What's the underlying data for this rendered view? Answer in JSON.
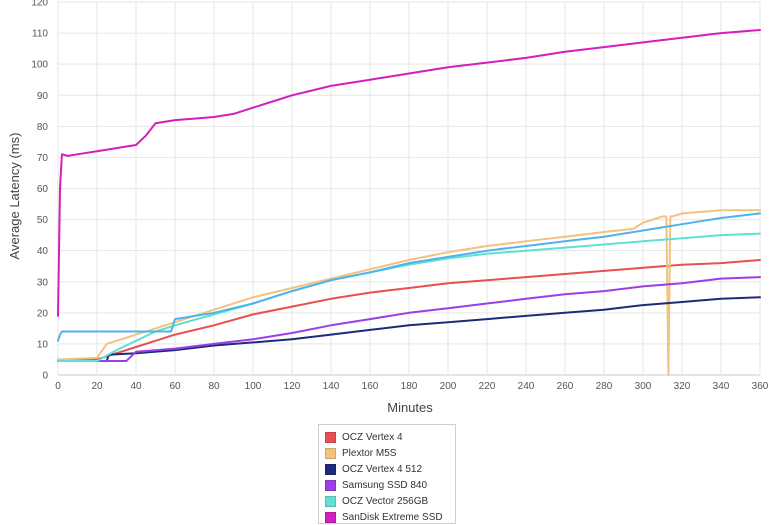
{
  "chart_data": {
    "type": "line",
    "title": "",
    "xlabel": "Minutes",
    "ylabel": "Average Latency (ms)",
    "xlim": [
      0,
      360
    ],
    "ylim": [
      0,
      120
    ],
    "x_ticks": [
      0,
      20,
      40,
      60,
      80,
      100,
      120,
      140,
      160,
      180,
      200,
      220,
      240,
      260,
      280,
      300,
      320,
      340,
      360
    ],
    "y_ticks": [
      0,
      10,
      20,
      30,
      40,
      50,
      60,
      70,
      80,
      90,
      100,
      110,
      120
    ],
    "grid": "vertical and horizontal",
    "legend_position": "bottom",
    "series": [
      {
        "name": "OCZ Vertex 4",
        "color": "#e8504f",
        "x": [
          0,
          20,
          30,
          40,
          50,
          60,
          80,
          100,
          120,
          140,
          160,
          180,
          200,
          220,
          240,
          260,
          280,
          300,
          320,
          340,
          360
        ],
        "values": [
          5,
          5,
          7,
          9,
          11,
          13,
          16,
          19.5,
          22,
          24.5,
          26.5,
          28,
          29.5,
          30.5,
          31.5,
          32.5,
          33.5,
          34.5,
          35.5,
          36,
          37
        ]
      },
      {
        "name": "Plextor M5S",
        "color": "#f2c27e",
        "x": [
          0,
          20,
          25,
          30,
          40,
          50,
          60,
          80,
          100,
          120,
          140,
          160,
          180,
          200,
          220,
          240,
          260,
          280,
          295,
          300,
          310,
          312,
          313,
          314,
          315,
          320,
          340,
          360
        ],
        "values": [
          5,
          5.5,
          10,
          11,
          13,
          15,
          17,
          21,
          25,
          28,
          31,
          34,
          37,
          39.5,
          41.5,
          43,
          44.5,
          46,
          47,
          49,
          51,
          51,
          0,
          51,
          51,
          52,
          53,
          53
        ]
      },
      {
        "name": "OCZ Vertex 4 512",
        "color": "#1f2a7a",
        "x": [
          0,
          20,
          25,
          26,
          40,
          60,
          80,
          100,
          120,
          140,
          160,
          180,
          200,
          220,
          240,
          260,
          280,
          300,
          320,
          340,
          360
        ],
        "values": [
          4.5,
          4.5,
          4.5,
          6.5,
          7,
          8,
          9.5,
          10.5,
          11.5,
          13,
          14.5,
          16,
          17,
          18,
          19,
          20,
          21,
          22.5,
          23.5,
          24.5,
          25
        ]
      },
      {
        "name": "Samsung SSD 840",
        "color": "#9b3ee8",
        "x": [
          0,
          30,
          35,
          40,
          60,
          80,
          100,
          120,
          140,
          160,
          180,
          200,
          220,
          240,
          260,
          280,
          300,
          320,
          340,
          360
        ],
        "values": [
          4.5,
          4.5,
          4.5,
          7.5,
          8.5,
          10,
          11.5,
          13.5,
          16,
          18,
          20,
          21.5,
          23,
          24.5,
          26,
          27,
          28.5,
          29.5,
          31,
          31.5
        ]
      },
      {
        "name": "OCZ Vector 256GB",
        "color": "#5fe0d2",
        "x": [
          0,
          20,
          30,
          40,
          50,
          60,
          80,
          100,
          120,
          140,
          160,
          180,
          200,
          220,
          240,
          260,
          280,
          300,
          320,
          340,
          360
        ],
        "values": [
          4.5,
          4.5,
          8,
          11,
          14,
          16,
          19.5,
          23,
          27,
          30.5,
          33,
          35.5,
          37.5,
          39,
          40,
          41,
          42,
          43,
          44,
          45,
          45.5
        ]
      },
      {
        "name": "SanDisk Extreme SSD",
        "color": "#d21fbe",
        "x": [
          0,
          1,
          2,
          5,
          10,
          20,
          30,
          40,
          45,
          50,
          60,
          70,
          80,
          90,
          100,
          110,
          120,
          140,
          160,
          180,
          200,
          220,
          240,
          260,
          280,
          300,
          320,
          340,
          360
        ],
        "values": [
          19,
          60,
          71,
          70.5,
          71,
          72,
          73,
          74,
          77,
          81,
          82,
          82.5,
          83,
          84,
          86,
          88,
          90,
          93,
          95,
          97,
          99,
          100.5,
          102,
          104,
          105.5,
          107,
          108.5,
          110,
          111
        ]
      },
      {
        "name": "",
        "color": "#4db3f0",
        "x": [
          0,
          1,
          2,
          20,
          40,
          55,
          58,
          60,
          80,
          100,
          120,
          140,
          160,
          180,
          200,
          220,
          240,
          260,
          280,
          300,
          320,
          340,
          360
        ],
        "values": [
          11,
          13,
          14,
          14,
          14,
          14,
          14,
          18,
          20,
          23,
          27,
          30.5,
          33,
          36,
          38,
          40,
          41.5,
          43,
          44.5,
          46.5,
          48.5,
          50.5,
          52
        ]
      }
    ]
  }
}
